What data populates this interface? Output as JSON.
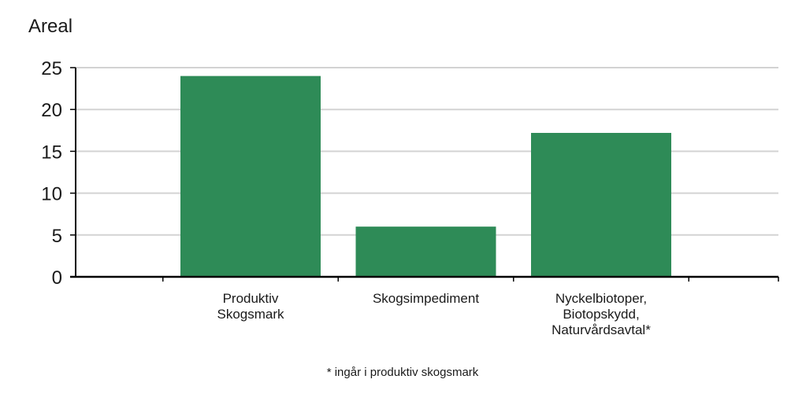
{
  "chart_data": {
    "type": "bar",
    "ylabel": "Areal",
    "xlabel": "",
    "categories": [
      [
        "Produktiv",
        "Skogsmark"
      ],
      [
        "Skogsimpediment"
      ],
      [
        "Nyckelbiotoper,",
        "Biotopskydd,",
        "Naturvårdsavtal*"
      ]
    ],
    "values": [
      24,
      6,
      17.2
    ],
    "ylim": [
      0,
      25
    ],
    "yticks": [
      "0",
      "5",
      "10",
      "15",
      "20",
      "25"
    ],
    "grid": true,
    "bar_color": "#2e8b57",
    "grid_color": "#d3d3d3",
    "axis_color": "#000000",
    "footnote": "* ingår i produktiv skogsmark"
  }
}
